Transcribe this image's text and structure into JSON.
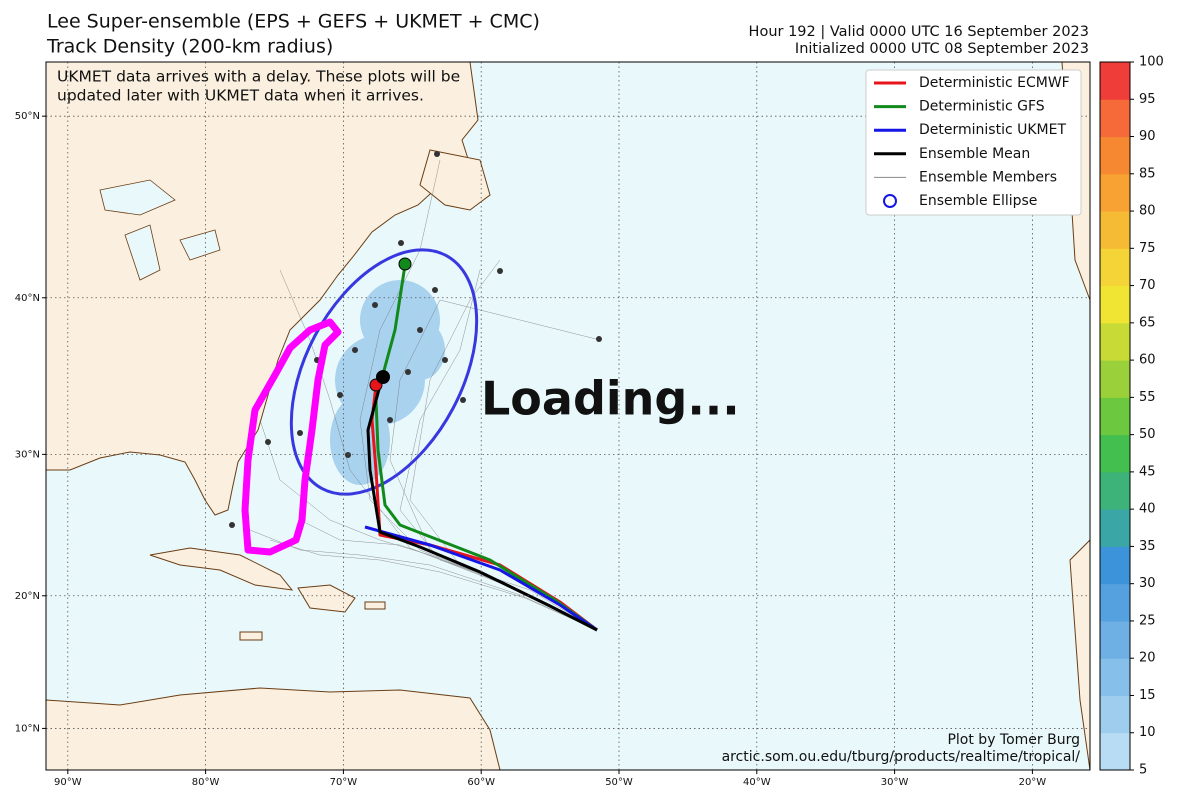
{
  "header": {
    "title": [
      "Lee Super-ensemble (EPS + GEFS + UKMET + CMC)",
      "Track Density (200-km radius)"
    ],
    "info": [
      "Hour 192 | Valid 0000 UTC 16 September 2023",
      "Initialized 0000 UTC 08 September 2023"
    ]
  },
  "note": [
    "UKMET data arrives with a delay. These plots will be",
    "updated later with UKMET data when it arrives."
  ],
  "legend": [
    {
      "name": "Deterministic ECMWF",
      "color": "#e8141c",
      "style": "line"
    },
    {
      "name": "Deterministic GFS",
      "color": "#118a1b",
      "style": "line"
    },
    {
      "name": "Deterministic UKMET",
      "color": "#1515e6",
      "style": "line"
    },
    {
      "name": "Ensemble Mean",
      "color": "#000000",
      "style": "line"
    },
    {
      "name": "Ensemble Members",
      "color": "#8a8a8a",
      "style": "thin"
    },
    {
      "name": "Ensemble Ellipse",
      "color": "#1515e6",
      "style": "circle"
    }
  ],
  "overlay": "Loading...",
  "credits": [
    "Plot by Tomer Burg",
    "arctic.som.ou.edu/tburg/products/realtime/tropical/"
  ],
  "lon_ticks": [
    {
      "value": -90,
      "label": "90°W"
    },
    {
      "value": -80,
      "label": "80°W"
    },
    {
      "value": -70,
      "label": "70°W"
    },
    {
      "value": -60,
      "label": "60°W"
    },
    {
      "value": -50,
      "label": "50°W"
    },
    {
      "value": -40,
      "label": "40°W"
    },
    {
      "value": -30,
      "label": "30°W"
    },
    {
      "value": -20,
      "label": "20°W"
    }
  ],
  "lat_ticks": [
    {
      "value": 10,
      "label": "10°N"
    },
    {
      "value": 20,
      "label": "20°N"
    },
    {
      "value": 30,
      "label": "30°N"
    },
    {
      "value": 40,
      "label": "40°N"
    },
    {
      "value": 50,
      "label": "50°N"
    }
  ],
  "colorbar": {
    "lim": [
      5,
      100
    ],
    "ticks": [
      5,
      10,
      15,
      20,
      25,
      30,
      35,
      40,
      45,
      50,
      55,
      60,
      65,
      70,
      75,
      80,
      85,
      90,
      95,
      100
    ],
    "colors": [
      "#b8dcf3",
      "#9fcdee",
      "#86bfe9",
      "#6eb0e4",
      "#55a1df",
      "#3d93da",
      "#3aa6a6",
      "#3db37a",
      "#42bf4e",
      "#6cc93f",
      "#9ad13a",
      "#c7da36",
      "#f1e533",
      "#f5d437",
      "#f6bb35",
      "#f7a233",
      "#f68832",
      "#f56a38",
      "#ef3e3a"
    ]
  }
}
